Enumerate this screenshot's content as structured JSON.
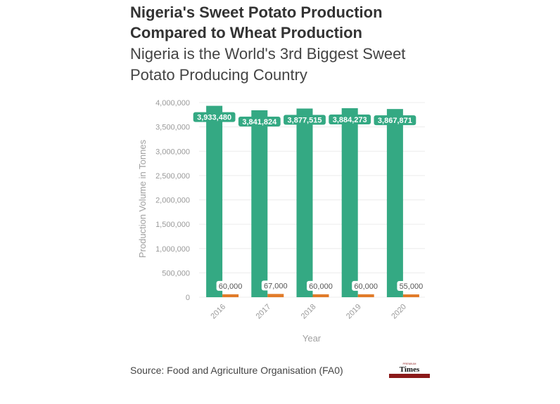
{
  "title": "Nigeria's Sweet Potato Production Compared to Wheat Production",
  "subtitle": "Nigeria is the World's 3rd Biggest Sweet Potato Producing Country",
  "source": "Source: Food and Agriculture Organisation (FA0)",
  "logo": {
    "text": "Times",
    "top_text": "PREMIUM"
  },
  "colors": {
    "sweet_potato": "#34a983",
    "wheat": "#e17b29",
    "grid": "#ececec",
    "logo_bar": "#8b1a1a"
  },
  "chart_data": {
    "type": "bar",
    "categories": [
      "2016",
      "2017",
      "2018",
      "2019",
      "2020"
    ],
    "series": [
      {
        "values": [
          3933480,
          3841824,
          3877515,
          3884273,
          3867871
        ],
        "labels": [
          "3,933,480",
          "3,841,824",
          "3,877,515",
          "3,884,273",
          "3,867,871"
        ]
      },
      {
        "values": [
          60000,
          67000,
          60000,
          60000,
          55000
        ],
        "labels": [
          "60,000",
          "67,000",
          "60,000",
          "60,000",
          "55,000"
        ]
      }
    ],
    "xlabel": "Year",
    "ylabel": "Production Volume in Tonnes",
    "ylim": [
      0,
      4000000
    ],
    "yticks": [
      0,
      500000,
      1000000,
      1500000,
      2000000,
      2500000,
      3000000,
      3500000,
      4000000
    ],
    "ytick_labels": [
      "0",
      "500,000",
      "1,000,000",
      "1,500,000",
      "2,000,000",
      "2,500,000",
      "3,000,000",
      "3,500,000",
      "4,000,000"
    ],
    "grid": true,
    "legend": "none"
  }
}
